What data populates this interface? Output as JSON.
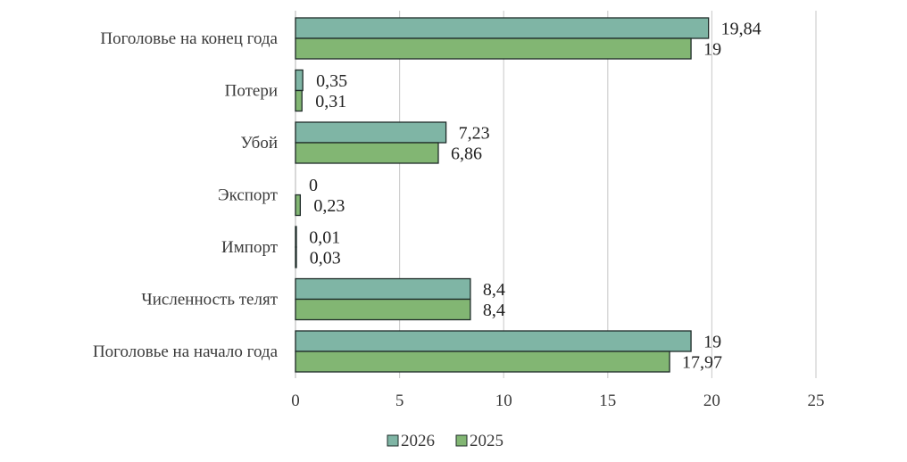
{
  "chart_data": {
    "type": "bar",
    "orientation": "horizontal",
    "categories": [
      "Поголовье на конец года",
      "Потери",
      "Убой",
      "Экспорт",
      "Импорт",
      "Численность телят",
      "Поголовье на начало года"
    ],
    "series": [
      {
        "name": "2026",
        "color": "#7fb5a5",
        "values": [
          19.84,
          0.35,
          7.23,
          0,
          0.01,
          8.4,
          19
        ],
        "labels": [
          "19,84",
          "0,35",
          "7,23",
          "0",
          "0,01",
          "8,4",
          "19"
        ]
      },
      {
        "name": "2025",
        "color": "#82b673",
        "values": [
          19,
          0.31,
          6.86,
          0.23,
          0.03,
          8.4,
          17.97
        ],
        "labels": [
          "19",
          "0,31",
          "6,86",
          "0,23",
          "0,03",
          "8,4",
          "17,97"
        ]
      }
    ],
    "xlim": [
      0,
      25
    ],
    "xticks": [
      0,
      5,
      10,
      15,
      20,
      25
    ],
    "grid": true,
    "legend": "bottom",
    "title": "",
    "xlabel": "",
    "ylabel": ""
  }
}
